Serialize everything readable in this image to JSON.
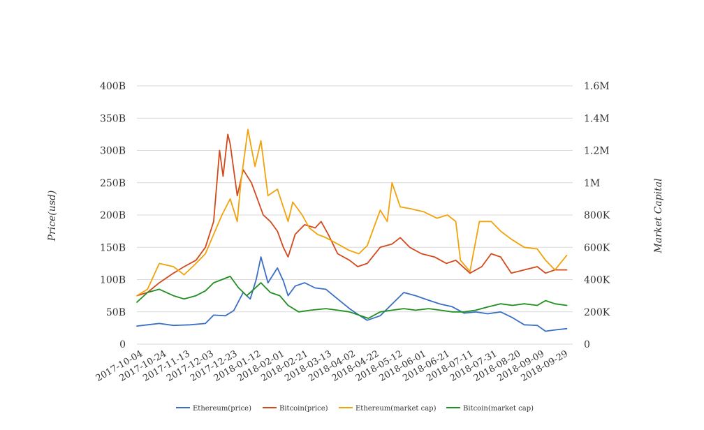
{
  "chart_data": {
    "type": "line",
    "title": "",
    "ylabel_left": "Price(usd)",
    "ylabel_right": "Market Capital",
    "left_axis": {
      "min": 0,
      "max": 400000000000,
      "ticks": [
        0,
        50000000000,
        100000000000,
        150000000000,
        200000000000,
        250000000000,
        300000000000,
        350000000000,
        400000000000
      ],
      "tick_labels": [
        "0",
        "50B",
        "100B",
        "150B",
        "200B",
        "250B",
        "300B",
        "350B",
        "400B"
      ]
    },
    "right_axis": {
      "min": 0,
      "max": 1600000,
      "ticks": [
        0,
        200000,
        400000,
        600000,
        800000,
        1000000,
        1200000,
        1400000,
        1600000
      ],
      "tick_labels": [
        "0",
        "200K",
        "400K",
        "600K",
        "800K",
        "1M",
        "1.2M",
        "1.4M",
        "1.6M"
      ]
    },
    "x_range": [
      "2017-10-01",
      "2018-10-05"
    ],
    "x_tick_labels": [
      "2017-10-04",
      "2017-10-24",
      "2017-11-13",
      "2017-12-03",
      "2017-12-23",
      "2018-01-12",
      "2018-02-01",
      "2018-02-21",
      "2018-03-13",
      "2018-04-02",
      "2018-04-22",
      "2018-05-12",
      "2018-06-01",
      "2018-06-21",
      "2018-07-11",
      "2018-07-31",
      "2018-08-20",
      "2018-09-09",
      "2018-09-29"
    ],
    "grid": "horizontal",
    "legend_position": "bottom",
    "series": [
      {
        "name": "Ethereum(price)",
        "color": "#3a6fc4",
        "axis": "left",
        "x": [
          "2017-10-01",
          "2017-10-10",
          "2017-10-20",
          "2017-11-01",
          "2017-11-15",
          "2017-11-28",
          "2017-12-05",
          "2017-12-15",
          "2017-12-22",
          "2017-12-30",
          "2018-01-05",
          "2018-01-10",
          "2018-01-14",
          "2018-01-20",
          "2018-01-28",
          "2018-02-02",
          "2018-02-06",
          "2018-02-12",
          "2018-02-20",
          "2018-03-01",
          "2018-03-10",
          "2018-03-20",
          "2018-03-30",
          "2018-04-07",
          "2018-04-14",
          "2018-04-25",
          "2018-05-05",
          "2018-05-15",
          "2018-05-25",
          "2018-06-05",
          "2018-06-15",
          "2018-06-25",
          "2018-07-05",
          "2018-07-15",
          "2018-07-25",
          "2018-08-05",
          "2018-08-15",
          "2018-08-25",
          "2018-09-05",
          "2018-09-12",
          "2018-09-20",
          "2018-09-30"
        ],
        "values": [
          28,
          30,
          32,
          29,
          30,
          32,
          45,
          44,
          52,
          80,
          70,
          100,
          135,
          95,
          118,
          98,
          75,
          90,
          95,
          87,
          85,
          70,
          55,
          45,
          37,
          44,
          62,
          80,
          75,
          68,
          62,
          58,
          48,
          50,
          47,
          50,
          41,
          30,
          29,
          20,
          22,
          24
        ]
      },
      {
        "name": "Bitcoin(price)",
        "color": "#d24a1c",
        "axis": "left",
        "x": [
          "2017-10-01",
          "2017-10-10",
          "2017-10-20",
          "2017-11-01",
          "2017-11-10",
          "2017-11-20",
          "2017-11-28",
          "2017-12-05",
          "2017-12-10",
          "2017-12-13",
          "2017-12-17",
          "2017-12-19",
          "2017-12-25",
          "2017-12-30",
          "2018-01-06",
          "2018-01-12",
          "2018-01-16",
          "2018-01-22",
          "2018-01-28",
          "2018-02-02",
          "2018-02-06",
          "2018-02-12",
          "2018-02-20",
          "2018-03-01",
          "2018-03-06",
          "2018-03-12",
          "2018-03-20",
          "2018-03-30",
          "2018-04-06",
          "2018-04-14",
          "2018-04-25",
          "2018-05-05",
          "2018-05-12",
          "2018-05-20",
          "2018-05-30",
          "2018-06-10",
          "2018-06-20",
          "2018-06-28",
          "2018-07-10",
          "2018-07-20",
          "2018-07-28",
          "2018-08-05",
          "2018-08-14",
          "2018-08-25",
          "2018-09-05",
          "2018-09-12",
          "2018-09-20",
          "2018-09-30"
        ],
        "values": [
          75,
          80,
          95,
          110,
          120,
          130,
          150,
          190,
          300,
          260,
          325,
          310,
          230,
          270,
          250,
          220,
          200,
          190,
          175,
          150,
          135,
          170,
          185,
          180,
          190,
          170,
          140,
          130,
          120,
          125,
          150,
          155,
          165,
          150,
          140,
          135,
          125,
          130,
          110,
          120,
          140,
          135,
          110,
          115,
          120,
          110,
          115,
          115
        ]
      },
      {
        "name": "Ethereum(market cap)",
        "color": "#f0a30a",
        "axis": "right",
        "x": [
          "2017-10-01",
          "2017-10-10",
          "2017-10-20",
          "2017-11-01",
          "2017-11-10",
          "2017-11-20",
          "2017-11-28",
          "2017-12-05",
          "2017-12-12",
          "2017-12-19",
          "2017-12-25",
          "2017-12-28",
          "2018-01-03",
          "2018-01-09",
          "2018-01-14",
          "2018-01-20",
          "2018-01-28",
          "2018-02-06",
          "2018-02-10",
          "2018-02-18",
          "2018-02-24",
          "2018-03-03",
          "2018-03-10",
          "2018-03-20",
          "2018-03-30",
          "2018-04-07",
          "2018-04-14",
          "2018-04-25",
          "2018-05-01",
          "2018-05-05",
          "2018-05-12",
          "2018-05-20",
          "2018-06-01",
          "2018-06-12",
          "2018-06-21",
          "2018-06-28",
          "2018-07-02",
          "2018-07-10",
          "2018-07-18",
          "2018-07-28",
          "2018-08-05",
          "2018-08-14",
          "2018-08-25",
          "2018-09-05",
          "2018-09-12",
          "2018-09-20",
          "2018-09-30"
        ],
        "values": [
          300,
          340,
          500,
          480,
          430,
          500,
          560,
          680,
          800,
          900,
          760,
          1000,
          1330,
          1100,
          1260,
          920,
          960,
          760,
          880,
          800,
          720,
          680,
          660,
          620,
          580,
          560,
          610,
          830,
          760,
          1000,
          850,
          840,
          820,
          780,
          800,
          760,
          520,
          450,
          760,
          760,
          700,
          650,
          600,
          590,
          520,
          460,
          550
        ]
      },
      {
        "name": "Bitcoin(market cap)",
        "color": "#1f8f1f",
        "axis": "right",
        "x": [
          "2017-10-01",
          "2017-10-10",
          "2017-10-20",
          "2017-11-01",
          "2017-11-10",
          "2017-11-20",
          "2017-11-28",
          "2017-12-05",
          "2017-12-12",
          "2017-12-19",
          "2017-12-26",
          "2018-01-02",
          "2018-01-08",
          "2018-01-14",
          "2018-01-22",
          "2018-01-30",
          "2018-02-06",
          "2018-02-15",
          "2018-02-25",
          "2018-03-10",
          "2018-03-20",
          "2018-03-30",
          "2018-04-07",
          "2018-04-15",
          "2018-04-25",
          "2018-05-05",
          "2018-05-15",
          "2018-05-25",
          "2018-06-05",
          "2018-06-15",
          "2018-06-25",
          "2018-07-05",
          "2018-07-15",
          "2018-07-25",
          "2018-08-05",
          "2018-08-15",
          "2018-08-25",
          "2018-09-05",
          "2018-09-12",
          "2018-09-20",
          "2018-09-30"
        ],
        "values": [
          260,
          320,
          340,
          300,
          280,
          300,
          330,
          380,
          400,
          420,
          350,
          300,
          340,
          380,
          320,
          300,
          240,
          200,
          210,
          220,
          210,
          200,
          180,
          160,
          200,
          210,
          220,
          210,
          220,
          210,
          200,
          200,
          210,
          230,
          250,
          240,
          250,
          240,
          270,
          250,
          240
        ]
      }
    ]
  }
}
